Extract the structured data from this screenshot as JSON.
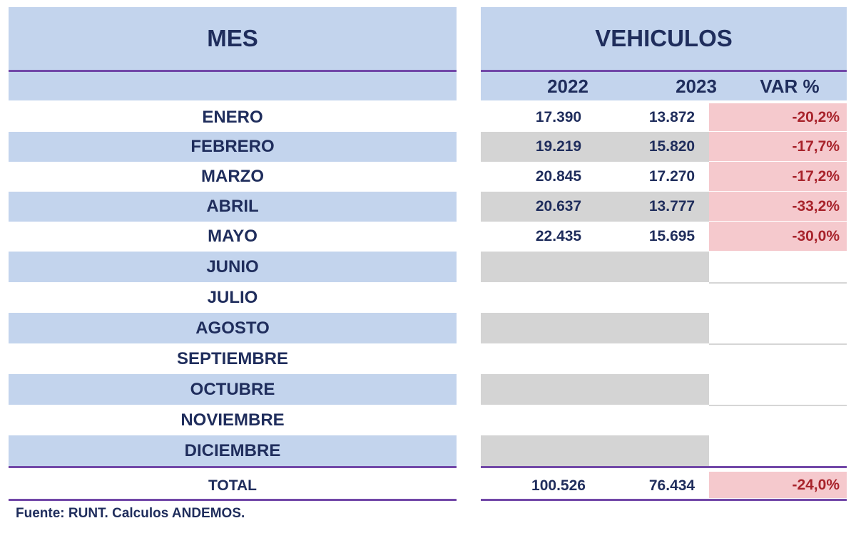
{
  "header": {
    "mes_label": "MES",
    "vehiculos_label": "VEHICULOS",
    "year_a": "2022",
    "year_b": "2023",
    "var_label": "VAR %"
  },
  "rows": [
    {
      "mes": "ENERO",
      "v2022": "17.390",
      "v2023": "13.872",
      "var": "-20,2%"
    },
    {
      "mes": "FEBRERO",
      "v2022": "19.219",
      "v2023": "15.820",
      "var": "-17,7%"
    },
    {
      "mes": "MARZO",
      "v2022": "20.845",
      "v2023": "17.270",
      "var": "-17,2%"
    },
    {
      "mes": "ABRIL",
      "v2022": "20.637",
      "v2023": "13.777",
      "var": "-33,2%"
    },
    {
      "mes": "MAYO",
      "v2022": "22.435",
      "v2023": "15.695",
      "var": "-30,0%"
    },
    {
      "mes": "JUNIO"
    },
    {
      "mes": "JULIO"
    },
    {
      "mes": "AGOSTO"
    },
    {
      "mes": "SEPTIEMBRE"
    },
    {
      "mes": "OCTUBRE"
    },
    {
      "mes": "NOVIEMBRE"
    },
    {
      "mes": "DICIEMBRE"
    }
  ],
  "total": {
    "label": "TOTAL",
    "v2022": "100.526",
    "v2023": "76.434",
    "var": "-24,0%"
  },
  "source": "Fuente: RUNT. Calculos ANDEMOS.",
  "colors": {
    "header_bg": "#c3d4ed",
    "accent_line": "#7248a8",
    "negative_bg": "#f5c9cd",
    "negative_text": "#a8232b",
    "text": "#1f2d5c"
  }
}
